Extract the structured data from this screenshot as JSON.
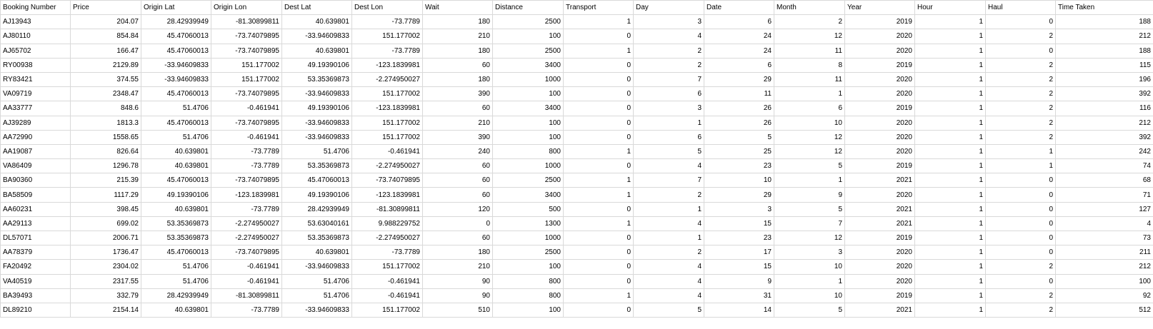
{
  "table": {
    "columns": [
      "Booking Number",
      "Price",
      "Origin Lat",
      "Origin Lon",
      "Dest Lat",
      "Dest Lon",
      "Wait",
      "Distance",
      "Transport",
      "Day",
      "Date",
      "Month",
      "Year",
      "Hour",
      "Haul",
      "Time Taken"
    ],
    "rows": [
      [
        "AJ13943",
        "204.07",
        "28.42939949",
        "-81.30899811",
        "40.639801",
        "-73.7789",
        "180",
        "2500",
        "1",
        "3",
        "6",
        "2",
        "2019",
        "1",
        "0",
        "188"
      ],
      [
        "AJ80110",
        "854.84",
        "45.47060013",
        "-73.74079895",
        "-33.94609833",
        "151.177002",
        "210",
        "100",
        "0",
        "4",
        "24",
        "12",
        "2020",
        "1",
        "2",
        "212"
      ],
      [
        "AJ65702",
        "166.47",
        "45.47060013",
        "-73.74079895",
        "40.639801",
        "-73.7789",
        "180",
        "2500",
        "1",
        "2",
        "24",
        "11",
        "2020",
        "1",
        "0",
        "188"
      ],
      [
        "RY00938",
        "2129.89",
        "-33.94609833",
        "151.177002",
        "49.19390106",
        "-123.1839981",
        "60",
        "3400",
        "0",
        "2",
        "6",
        "8",
        "2019",
        "1",
        "2",
        "115"
      ],
      [
        "RY83421",
        "374.55",
        "-33.94609833",
        "151.177002",
        "53.35369873",
        "-2.274950027",
        "180",
        "1000",
        "0",
        "7",
        "29",
        "11",
        "2020",
        "1",
        "2",
        "196"
      ],
      [
        "VA09719",
        "2348.47",
        "45.47060013",
        "-73.74079895",
        "-33.94609833",
        "151.177002",
        "390",
        "100",
        "0",
        "6",
        "11",
        "1",
        "2020",
        "1",
        "2",
        "392"
      ],
      [
        "AA33777",
        "848.6",
        "51.4706",
        "-0.461941",
        "49.19390106",
        "-123.1839981",
        "60",
        "3400",
        "0",
        "3",
        "26",
        "6",
        "2019",
        "1",
        "2",
        "116"
      ],
      [
        "AJ39289",
        "1813.3",
        "45.47060013",
        "-73.74079895",
        "-33.94609833",
        "151.177002",
        "210",
        "100",
        "0",
        "1",
        "26",
        "10",
        "2020",
        "1",
        "2",
        "212"
      ],
      [
        "AA72990",
        "1558.65",
        "51.4706",
        "-0.461941",
        "-33.94609833",
        "151.177002",
        "390",
        "100",
        "0",
        "6",
        "5",
        "12",
        "2020",
        "1",
        "2",
        "392"
      ],
      [
        "AA19087",
        "826.64",
        "40.639801",
        "-73.7789",
        "51.4706",
        "-0.461941",
        "240",
        "800",
        "1",
        "5",
        "25",
        "12",
        "2020",
        "1",
        "1",
        "242"
      ],
      [
        "VA86409",
        "1296.78",
        "40.639801",
        "-73.7789",
        "53.35369873",
        "-2.274950027",
        "60",
        "1000",
        "0",
        "4",
        "23",
        "5",
        "2019",
        "1",
        "1",
        "74"
      ],
      [
        "BA90360",
        "215.39",
        "45.47060013",
        "-73.74079895",
        "45.47060013",
        "-73.74079895",
        "60",
        "2500",
        "1",
        "7",
        "10",
        "1",
        "2021",
        "1",
        "0",
        "68"
      ],
      [
        "BA58509",
        "1117.29",
        "49.19390106",
        "-123.1839981",
        "49.19390106",
        "-123.1839981",
        "60",
        "3400",
        "1",
        "2",
        "29",
        "9",
        "2020",
        "1",
        "0",
        "71"
      ],
      [
        "AA60231",
        "398.45",
        "40.639801",
        "-73.7789",
        "28.42939949",
        "-81.30899811",
        "120",
        "500",
        "0",
        "1",
        "3",
        "5",
        "2021",
        "1",
        "0",
        "127"
      ],
      [
        "AA29113",
        "699.02",
        "53.35369873",
        "-2.274950027",
        "53.63040161",
        "9.988229752",
        "0",
        "1300",
        "1",
        "4",
        "15",
        "7",
        "2021",
        "1",
        "0",
        "4"
      ],
      [
        "DL57071",
        "2006.71",
        "53.35369873",
        "-2.274950027",
        "53.35369873",
        "-2.274950027",
        "60",
        "1000",
        "0",
        "1",
        "23",
        "12",
        "2019",
        "1",
        "0",
        "73"
      ],
      [
        "AA78379",
        "1736.47",
        "45.47060013",
        "-73.74079895",
        "40.639801",
        "-73.7789",
        "180",
        "2500",
        "0",
        "2",
        "17",
        "3",
        "2020",
        "1",
        "0",
        "211"
      ],
      [
        "FA20492",
        "2304.02",
        "51.4706",
        "-0.461941",
        "-33.94609833",
        "151.177002",
        "210",
        "100",
        "0",
        "4",
        "15",
        "10",
        "2020",
        "1",
        "2",
        "212"
      ],
      [
        "VA40519",
        "2317.55",
        "51.4706",
        "-0.461941",
        "51.4706",
        "-0.461941",
        "90",
        "800",
        "0",
        "4",
        "9",
        "1",
        "2020",
        "1",
        "0",
        "100"
      ],
      [
        "BA39493",
        "332.79",
        "28.42939949",
        "-81.30899811",
        "51.4706",
        "-0.461941",
        "90",
        "800",
        "1",
        "4",
        "31",
        "10",
        "2019",
        "1",
        "2",
        "92"
      ],
      [
        "DL89210",
        "2154.14",
        "40.639801",
        "-73.7789",
        "-33.94609833",
        "151.177002",
        "510",
        "100",
        "0",
        "5",
        "14",
        "5",
        "2021",
        "1",
        "2",
        "512"
      ]
    ]
  }
}
